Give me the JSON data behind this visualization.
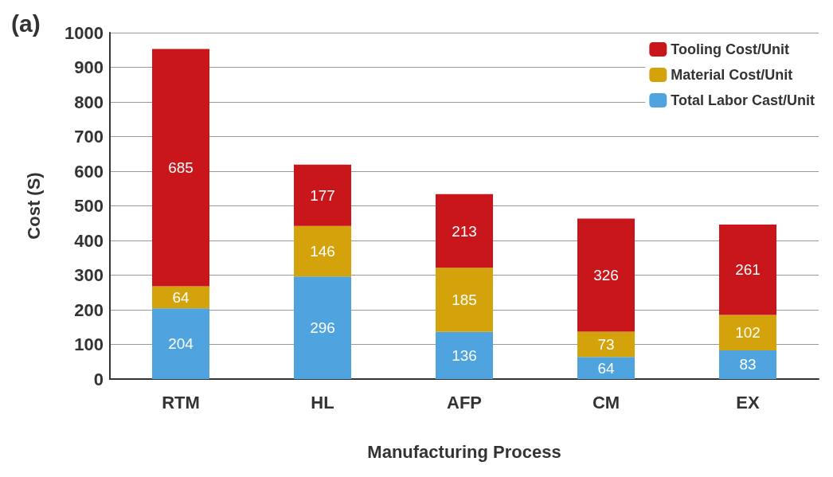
{
  "chart_data": {
    "type": "bar",
    "stacked": true,
    "xlabel": "Manufacturing Process",
    "ylabel": "Cost (S)",
    "annotations": [
      "(a)"
    ],
    "categories": [
      "RTM",
      "HL",
      "AFP",
      "CM",
      "EX"
    ],
    "series": [
      {
        "name": "Total Labor Cast/Unit",
        "color": "#4fa3df",
        "values": [
          204,
          296,
          136,
          64,
          83
        ]
      },
      {
        "name": "Material Cost/Unit",
        "color": "#d4a20a",
        "values": [
          64,
          146,
          185,
          73,
          102
        ]
      },
      {
        "name": "Tooling Cost/Unit",
        "color": "#c8161b",
        "values": [
          685,
          177,
          213,
          326,
          261
        ]
      }
    ],
    "ylim": [
      0,
      1000
    ],
    "yticks": [
      0,
      100,
      200,
      300,
      400,
      500,
      600,
      700,
      800,
      900,
      1000
    ],
    "grid": "y",
    "legend": "top right",
    "data_labels": true
  }
}
